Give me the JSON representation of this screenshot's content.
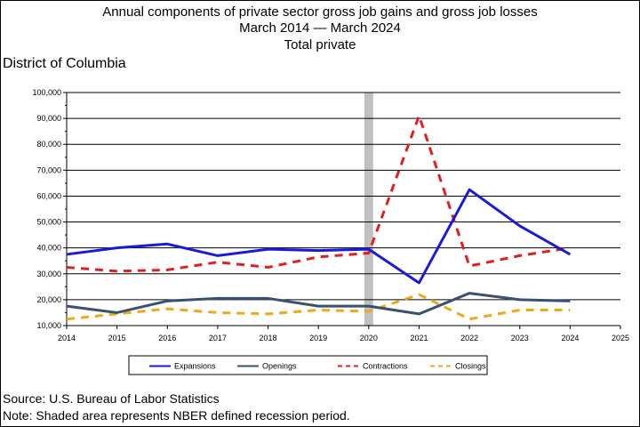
{
  "title_lines": [
    "Annual components of private sector gross job gains and gross job losses",
    "March 2014 — March 2024",
    "Total private"
  ],
  "region": "District of Columbia",
  "source": "Source: U.S. Bureau of Labor Statistics",
  "note": "Note: Shaded area represents NBER defined recession period.",
  "chart_data": {
    "type": "line",
    "x": [
      2014,
      2015,
      2016,
      2017,
      2018,
      2019,
      2020,
      2021,
      2022,
      2023,
      2024
    ],
    "x_ticks": [
      "2014",
      "2015",
      "2016",
      "2017",
      "2018",
      "2019",
      "2020",
      "2021",
      "2022",
      "2023",
      "2024",
      "2025"
    ],
    "xlim": [
      2014,
      2025
    ],
    "ylim": [
      10000,
      100000
    ],
    "y_ticks": [
      "10,000",
      "20,000",
      "30,000",
      "40,000",
      "50,000",
      "60,000",
      "70,000",
      "80,000",
      "90,000",
      "100,000"
    ],
    "grid": true,
    "recession_shading": [
      2020,
      2020.15
    ],
    "legend_position": "bottom",
    "series": [
      {
        "name": "Expansions",
        "color": "#1a1adc",
        "dash": "solid",
        "values": [
          37500,
          40000,
          41500,
          37000,
          39500,
          39000,
          39500,
          26500,
          62500,
          48500,
          37500
        ]
      },
      {
        "name": "Openings",
        "color": "#3a5070",
        "dash": "solid",
        "values": [
          17500,
          15000,
          19500,
          20500,
          20500,
          17500,
          17500,
          14500,
          22500,
          20000,
          19500
        ]
      },
      {
        "name": "Contractions",
        "color": "#e02020",
        "dash": "dashed",
        "values": [
          32500,
          31000,
          31500,
          34500,
          32500,
          36500,
          38000,
          91000,
          33000,
          37000,
          40000
        ]
      },
      {
        "name": "Closings",
        "color": "#f0a818",
        "dash": "dashed",
        "values": [
          12500,
          14500,
          16500,
          15000,
          14500,
          16000,
          15500,
          22000,
          12500,
          16000,
          16000
        ]
      }
    ]
  }
}
